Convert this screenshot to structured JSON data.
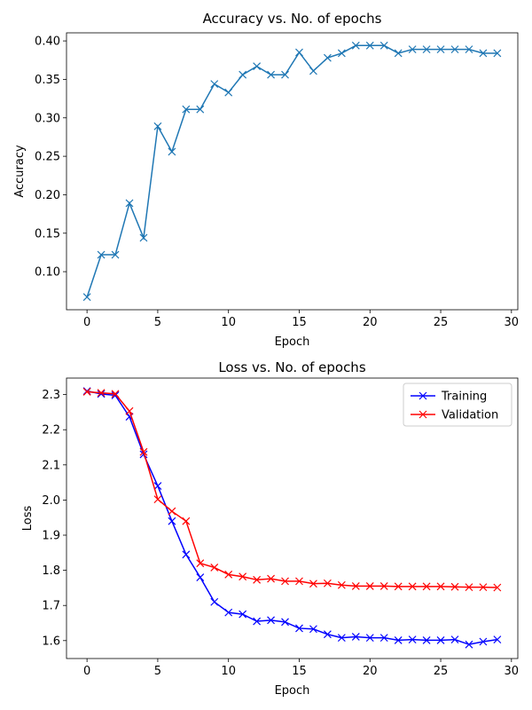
{
  "chart_data": [
    {
      "type": "line",
      "title": "Accuracy vs. No. of epochs",
      "xlabel": "Epoch",
      "ylabel": "Accuracy",
      "xlim": [
        -1.45,
        30.45
      ],
      "ylim": [
        0.0505,
        0.4105
      ],
      "xticks": [
        0,
        5,
        10,
        15,
        20,
        25,
        30
      ],
      "xtick_labels": [
        "0",
        "5",
        "10",
        "15",
        "20",
        "25",
        "30"
      ],
      "yticks": [
        0.1,
        0.15,
        0.2,
        0.25,
        0.3,
        0.35,
        0.4
      ],
      "ytick_labels": [
        "0.10",
        "0.15",
        "0.20",
        "0.25",
        "0.30",
        "0.35",
        "0.40"
      ],
      "grid": false,
      "series": [
        {
          "color": "#1f77b4",
          "marker": "x",
          "x": [
            0,
            1,
            2,
            3,
            4,
            5,
            6,
            7,
            8,
            9,
            10,
            11,
            12,
            13,
            14,
            15,
            16,
            17,
            18,
            19,
            20,
            21,
            22,
            23,
            24,
            25,
            26,
            27,
            28,
            29
          ],
          "y": [
            0.067,
            0.122,
            0.122,
            0.189,
            0.144,
            0.289,
            0.256,
            0.311,
            0.311,
            0.344,
            0.333,
            0.356,
            0.367,
            0.356,
            0.356,
            0.385,
            0.361,
            0.378,
            0.384,
            0.394,
            0.394,
            0.394,
            0.384,
            0.389,
            0.389,
            0.389,
            0.389,
            0.389,
            0.384,
            0.384
          ]
        }
      ]
    },
    {
      "type": "line",
      "title": "Loss vs. No. of epochs",
      "xlabel": "Epoch",
      "ylabel": "Loss",
      "xlim": [
        -1.45,
        30.45
      ],
      "ylim": [
        1.549,
        2.347
      ],
      "xticks": [
        0,
        5,
        10,
        15,
        20,
        25,
        30
      ],
      "xtick_labels": [
        "0",
        "5",
        "10",
        "15",
        "20",
        "25",
        "30"
      ],
      "yticks": [
        1.6,
        1.7,
        1.8,
        1.9,
        2.0,
        2.1,
        2.2,
        2.3
      ],
      "ytick_labels": [
        "1.6",
        "1.7",
        "1.8",
        "1.9",
        "2.0",
        "2.1",
        "2.2",
        "2.3"
      ],
      "grid": false,
      "legend": "top-right",
      "series": [
        {
          "name": "Training",
          "color": "#0000ff",
          "marker": "x",
          "x": [
            0,
            1,
            2,
            3,
            4,
            5,
            6,
            7,
            8,
            9,
            10,
            11,
            12,
            13,
            14,
            15,
            16,
            17,
            18,
            19,
            20,
            21,
            22,
            23,
            24,
            25,
            26,
            27,
            28,
            29
          ],
          "y": [
            2.31,
            2.302,
            2.298,
            2.237,
            2.13,
            2.04,
            1.94,
            1.845,
            1.78,
            1.71,
            1.68,
            1.675,
            1.655,
            1.658,
            1.653,
            1.635,
            1.633,
            1.618,
            1.608,
            1.611,
            1.608,
            1.608,
            1.601,
            1.603,
            1.601,
            1.601,
            1.603,
            1.589,
            1.597,
            1.603
          ]
        },
        {
          "name": "Validation",
          "color": "#ff0000",
          "marker": "x",
          "x": [
            0,
            1,
            2,
            3,
            4,
            5,
            6,
            7,
            8,
            9,
            10,
            11,
            12,
            13,
            14,
            15,
            16,
            17,
            18,
            19,
            20,
            21,
            22,
            23,
            24,
            25,
            26,
            27,
            28,
            29
          ],
          "y": [
            2.308,
            2.305,
            2.302,
            2.253,
            2.137,
            2.002,
            1.968,
            1.94,
            1.82,
            1.808,
            1.788,
            1.782,
            1.773,
            1.776,
            1.769,
            1.769,
            1.762,
            1.763,
            1.758,
            1.755,
            1.755,
            1.755,
            1.754,
            1.754,
            1.754,
            1.754,
            1.753,
            1.752,
            1.752,
            1.751
          ]
        }
      ]
    }
  ]
}
